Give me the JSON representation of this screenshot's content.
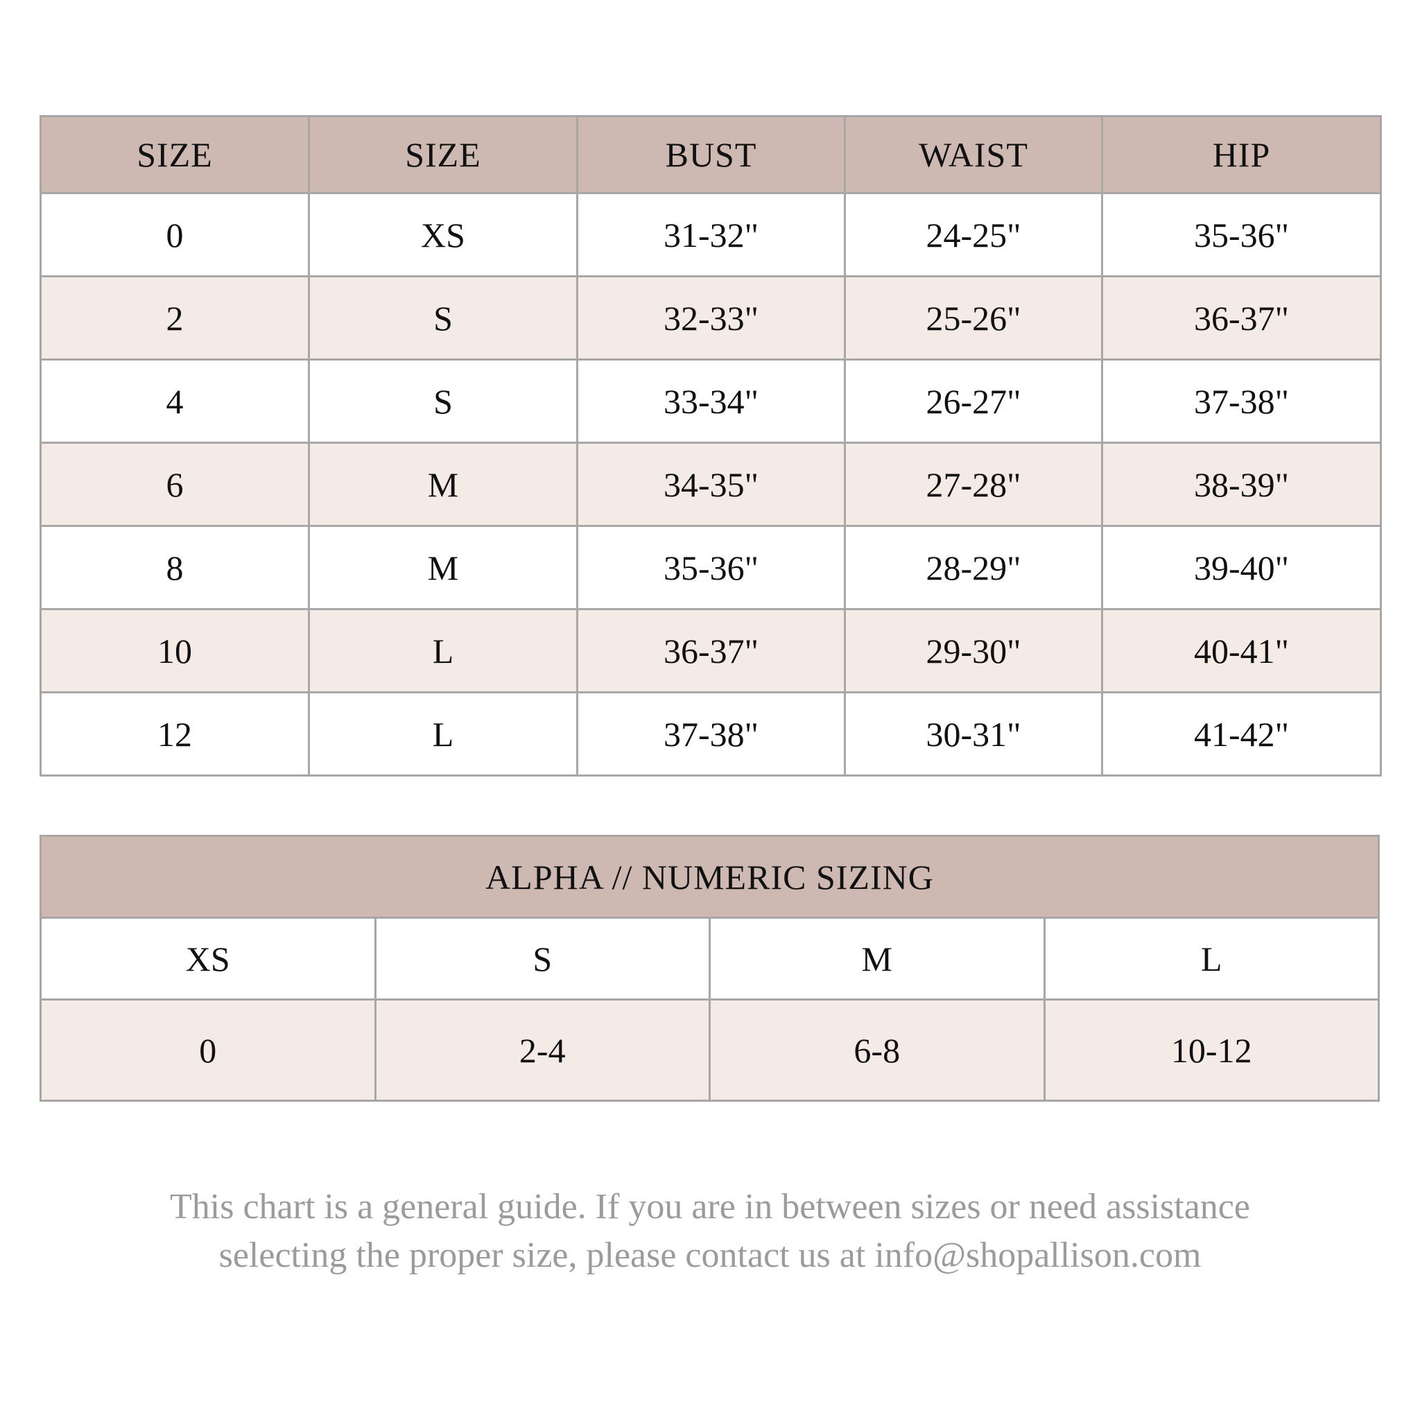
{
  "size_chart": {
    "headers": [
      "SIZE",
      "SIZE",
      "BUST",
      "WAIST",
      "HIP"
    ],
    "rows": [
      [
        "0",
        "XS",
        "31-32\"",
        "24-25\"",
        "35-36\""
      ],
      [
        "2",
        "S",
        "32-33\"",
        "25-26\"",
        "36-37\""
      ],
      [
        "4",
        "S",
        "33-34\"",
        "26-27\"",
        "37-38\""
      ],
      [
        "6",
        "M",
        "34-35\"",
        "27-28\"",
        "38-39\""
      ],
      [
        "8",
        "M",
        "35-36\"",
        "28-29\"",
        "39-40\""
      ],
      [
        "10",
        "L",
        "36-37\"",
        "29-30\"",
        "40-41\""
      ],
      [
        "12",
        "L",
        "37-38\"",
        "30-31\"",
        "41-42\""
      ]
    ]
  },
  "alpha_numeric": {
    "title": "ALPHA // NUMERIC SIZING",
    "alpha": [
      "XS",
      "S",
      "M",
      "L"
    ],
    "numeric": [
      "0",
      "2-4",
      "6-8",
      "10-12"
    ]
  },
  "note": {
    "line1": "This chart is a general guide. If you are in between sizes or need assistance",
    "line2": "selecting the proper size, please contact us at info@shopallison.com"
  },
  "colors": {
    "header_bg": "#cdb8b2",
    "alt_row_bg": "#f5ebe6",
    "border": "#a9a6a6",
    "note_text": "#9b9b9b"
  }
}
